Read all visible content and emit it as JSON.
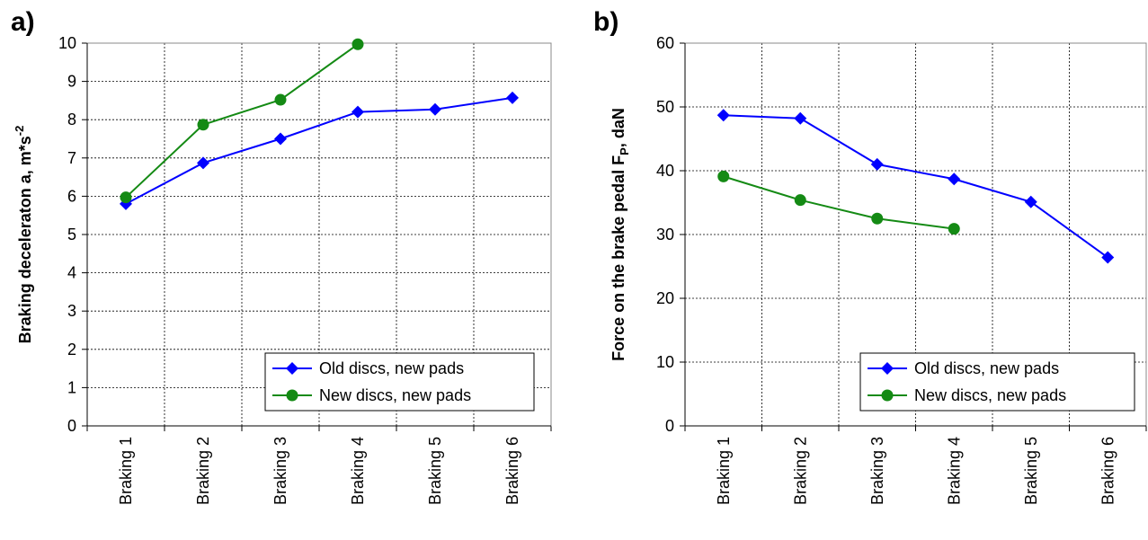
{
  "chart_data": [
    {
      "type": "line",
      "label": "a)",
      "ylabel_parts": [
        "Braking deceleraton  a, m*s",
        "-2"
      ],
      "ylabel_styles": [
        "normal",
        "super"
      ],
      "categories": [
        "Braking 1",
        "Braking 2",
        "Braking 3",
        "Braking 4",
        "Braking 5",
        "Braking 6"
      ],
      "series": [
        {
          "name": "Old discs, new pads",
          "color": "#0000ff",
          "marker": "diamond",
          "values": [
            5.8,
            6.87,
            7.5,
            8.2,
            8.27,
            8.57
          ]
        },
        {
          "name": "New discs, new pads",
          "color": "#148a14",
          "marker": "circle",
          "values": [
            5.97,
            7.87,
            8.52,
            9.97,
            null,
            null
          ]
        }
      ],
      "ylim": [
        0,
        10
      ],
      "yticks": [
        0,
        1,
        2,
        3,
        4,
        5,
        6,
        7,
        8,
        9,
        10
      ],
      "grid": true,
      "legend": "lower right"
    },
    {
      "type": "line",
      "label": "b)",
      "ylabel_parts": [
        "Force on the brake pedal F",
        "P",
        ", daN"
      ],
      "ylabel_styles": [
        "normal",
        "sub",
        "normal"
      ],
      "categories": [
        "Braking 1",
        "Braking 2",
        "Braking 3",
        "Braking 4",
        "Braking 5",
        "Braking 6"
      ],
      "series": [
        {
          "name": "Old discs, new pads",
          "color": "#0000ff",
          "marker": "diamond",
          "values": [
            48.7,
            48.2,
            41,
            38.7,
            35.1,
            26.4
          ]
        },
        {
          "name": "New discs, new pads",
          "color": "#148a14",
          "marker": "circle",
          "values": [
            39.1,
            35.4,
            32.5,
            30.9,
            null,
            null
          ]
        }
      ],
      "ylim": [
        0,
        60
      ],
      "yticks": [
        0,
        10,
        20,
        30,
        40,
        50,
        60
      ],
      "grid": true,
      "legend": "lower right"
    }
  ]
}
